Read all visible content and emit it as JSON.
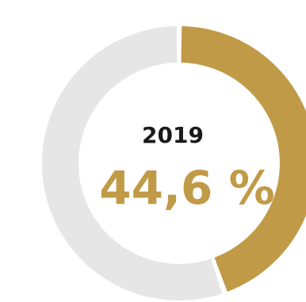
{
  "chart_data": {
    "type": "pie",
    "style": "donut",
    "slices": [
      {
        "value": 44.6,
        "color": "#c19a47"
      },
      {
        "value": 55.4,
        "color": "#e6e6e6"
      }
    ],
    "center_label": "2019",
    "center_value": "44,6 %",
    "units": "%"
  },
  "colors": {
    "accent": "#c19a47",
    "track": "#e6e6e6",
    "text_dark": "#1a1a1a"
  }
}
